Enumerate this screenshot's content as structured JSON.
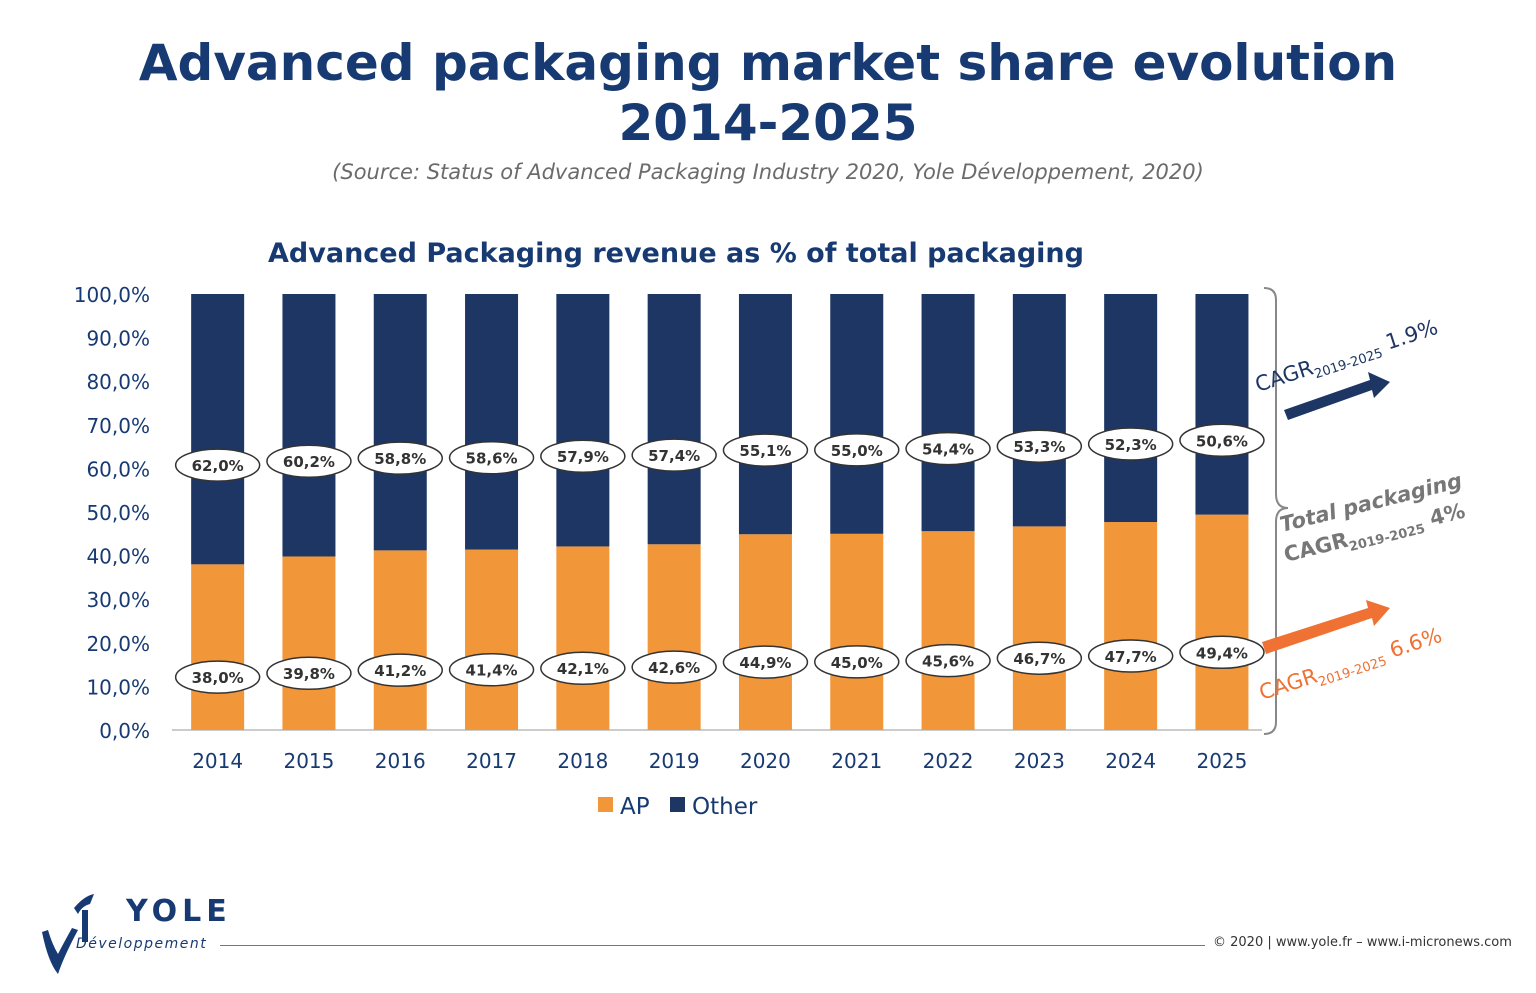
{
  "header": {
    "title_line1": "Advanced packaging market share evolution",
    "title_line2": "2014-2025",
    "source": "(Source: Status of Advanced Packaging Industry 2020, Yole Développement, 2020)"
  },
  "chart_data": {
    "type": "bar",
    "stacked": true,
    "title": "Advanced Packaging revenue as % of total packaging",
    "categories": [
      "2014",
      "2015",
      "2016",
      "2017",
      "2018",
      "2019",
      "2020",
      "2021",
      "2022",
      "2023",
      "2024",
      "2025"
    ],
    "series": [
      {
        "name": "AP",
        "color": "#f2963a",
        "values": [
          38.0,
          39.8,
          41.2,
          41.4,
          42.1,
          42.6,
          44.9,
          45.0,
          45.6,
          46.7,
          47.7,
          49.4
        ],
        "labels": [
          "38,0%",
          "39,8%",
          "41,2%",
          "41,4%",
          "42,1%",
          "42,6%",
          "44,9%",
          "45,0%",
          "45,6%",
          "46,7%",
          "47,7%",
          "49,4%"
        ]
      },
      {
        "name": "Other",
        "color": "#1d3664",
        "values": [
          62.0,
          60.2,
          58.8,
          58.6,
          57.9,
          57.4,
          55.1,
          55.0,
          54.4,
          53.3,
          52.3,
          50.6
        ],
        "labels": [
          "62,0%",
          "60,2%",
          "58,8%",
          "58,6%",
          "57,9%",
          "57,4%",
          "55,1%",
          "55,0%",
          "54,4%",
          "53,3%",
          "52,3%",
          "50,6%"
        ]
      }
    ],
    "ylim": [
      0,
      100
    ],
    "yticks": [
      0,
      10,
      20,
      30,
      40,
      50,
      60,
      70,
      80,
      90,
      100
    ],
    "ytick_labels": [
      "0,0%",
      "10,0%",
      "20,0%",
      "30,0%",
      "40,0%",
      "50,0%",
      "60,0%",
      "70,0%",
      "80,0%",
      "90,0%",
      "100,0%"
    ],
    "legend": [
      "AP",
      "Other"
    ],
    "annotations": {
      "other": {
        "text": "CAGR",
        "sub": "2019-2025",
        "value": "1.9%",
        "color": "#1d3664"
      },
      "total_line1": "Total packaging",
      "total": {
        "text": "CAGR",
        "sub": "2019-2025",
        "value": "4%",
        "color": "#777777"
      },
      "ap": {
        "text": "CAGR",
        "sub": "2019-2025",
        "value": "6.6%",
        "color": "#ef7234"
      }
    }
  },
  "footer": {
    "logo_name": "YOLE",
    "logo_sub": "Développement",
    "copyright": "© 2020 | www.yole.fr – www.i-micronews.com"
  }
}
